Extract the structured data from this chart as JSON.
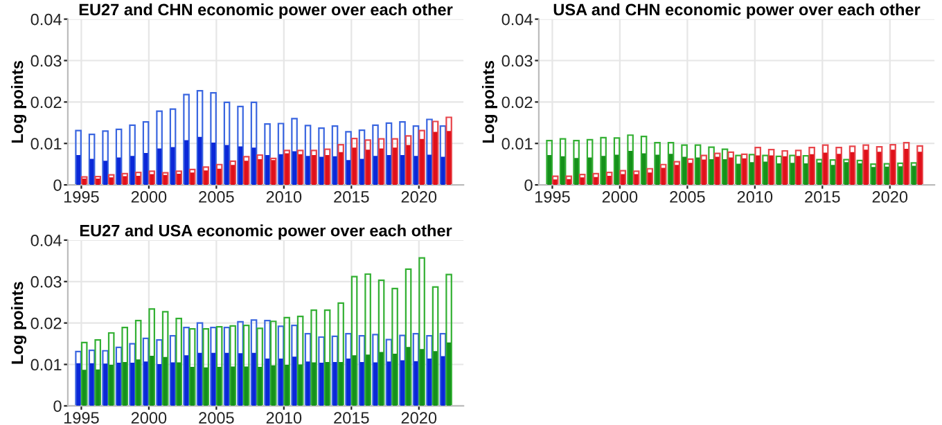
{
  "chart_data": [
    {
      "type": "bar",
      "title": "EU27 and CHN economic power over each other",
      "ylabel": "Log points",
      "x": [
        1995,
        1996,
        1997,
        1998,
        1999,
        2000,
        2001,
        2002,
        2003,
        2004,
        2005,
        2006,
        2007,
        2008,
        2009,
        2010,
        2011,
        2012,
        2013,
        2014,
        2015,
        2016,
        2017,
        2018,
        2019,
        2020,
        2021,
        2022
      ],
      "xlim": [
        1994,
        2023.3
      ],
      "xticks": [
        1995,
        2000,
        2005,
        2010,
        2015,
        2020
      ],
      "ylim": [
        0,
        0.04
      ],
      "yticks": [
        0,
        0.01,
        0.02,
        0.03,
        0.04
      ],
      "grid": true,
      "series": [
        {
          "color": "#3a66e0",
          "values": [
            0.0131,
            0.0122,
            0.013,
            0.0134,
            0.0144,
            0.0152,
            0.0178,
            0.0183,
            0.0218,
            0.0227,
            0.0222,
            0.0199,
            0.0189,
            0.0199,
            0.0147,
            0.0148,
            0.016,
            0.0143,
            0.0137,
            0.0142,
            0.0128,
            0.0132,
            0.0144,
            0.0149,
            0.0152,
            0.0142,
            0.0158,
            0.0142
          ]
        },
        {
          "color": "#0a28d8",
          "values": [
            0.0072,
            0.0063,
            0.0058,
            0.0066,
            0.007,
            0.0077,
            0.0088,
            0.0091,
            0.0108,
            0.0116,
            0.0102,
            0.0096,
            0.0093,
            0.009,
            0.0072,
            0.0074,
            0.0081,
            0.007,
            0.0068,
            0.0069,
            0.006,
            0.0063,
            0.007,
            0.0072,
            0.0072,
            0.007,
            0.0073,
            0.0068
          ]
        },
        {
          "color": "#e8454b",
          "values": [
            0.0019,
            0.002,
            0.0024,
            0.0027,
            0.003,
            0.0033,
            0.0029,
            0.0033,
            0.0037,
            0.0043,
            0.0049,
            0.0057,
            0.0068,
            0.0072,
            0.0064,
            0.0083,
            0.0083,
            0.0083,
            0.0086,
            0.0097,
            0.0112,
            0.0108,
            0.0111,
            0.0111,
            0.0118,
            0.0131,
            0.0153,
            0.0163
          ]
        },
        {
          "color": "#e0101a",
          "values": [
            0.0015,
            0.0015,
            0.0018,
            0.0021,
            0.0022,
            0.0026,
            0.0024,
            0.0027,
            0.003,
            0.0035,
            0.0039,
            0.0048,
            0.0058,
            0.0062,
            0.006,
            0.0076,
            0.0074,
            0.0072,
            0.0072,
            0.0079,
            0.009,
            0.0085,
            0.0088,
            0.009,
            0.0096,
            0.0111,
            0.0128,
            0.013
          ]
        }
      ]
    },
    {
      "type": "bar",
      "title": "USA and CHN economic power over each other",
      "ylabel": "Log points",
      "x": [
        1995,
        1996,
        1997,
        1998,
        1999,
        2000,
        2001,
        2002,
        2003,
        2004,
        2005,
        2006,
        2007,
        2008,
        2009,
        2010,
        2011,
        2012,
        2013,
        2014,
        2015,
        2016,
        2017,
        2018,
        2019,
        2020,
        2021,
        2022
      ],
      "xlim": [
        1994,
        2023.3
      ],
      "xticks": [
        1995,
        2000,
        2005,
        2010,
        2015,
        2020
      ],
      "ylim": [
        0,
        0.04
      ],
      "yticks": [
        0,
        0.01,
        0.02,
        0.03,
        0.04
      ],
      "grid": true,
      "series": [
        {
          "color": "#33b033",
          "values": [
            0.0107,
            0.0111,
            0.0107,
            0.0109,
            0.0114,
            0.0113,
            0.012,
            0.0117,
            0.0102,
            0.0102,
            0.0096,
            0.0096,
            0.0091,
            0.0086,
            0.0071,
            0.0073,
            0.0071,
            0.0069,
            0.0071,
            0.007,
            0.0061,
            0.006,
            0.0061,
            0.0059,
            0.005,
            0.0051,
            0.0052,
            0.0053
          ]
        },
        {
          "color": "#15911a",
          "values": [
            0.0072,
            0.0069,
            0.0065,
            0.0066,
            0.007,
            0.0073,
            0.0082,
            0.0076,
            0.0073,
            0.0075,
            0.0068,
            0.0066,
            0.0062,
            0.0062,
            0.0051,
            0.0055,
            0.0056,
            0.0052,
            0.0053,
            0.0052,
            0.0054,
            0.0048,
            0.0055,
            0.0052,
            0.0043,
            0.0044,
            0.0045,
            0.0046
          ]
        },
        {
          "color": "#e8454b",
          "values": [
            0.0021,
            0.0021,
            0.0025,
            0.0027,
            0.003,
            0.0034,
            0.0033,
            0.0039,
            0.0049,
            0.0056,
            0.0062,
            0.0071,
            0.0076,
            0.0079,
            0.0074,
            0.009,
            0.0085,
            0.0082,
            0.0083,
            0.009,
            0.0096,
            0.009,
            0.0093,
            0.0096,
            0.0092,
            0.0097,
            0.0102,
            0.0094
          ]
        },
        {
          "color": "#e0101a",
          "values": [
            0.0013,
            0.0014,
            0.0018,
            0.0019,
            0.0022,
            0.0026,
            0.0026,
            0.003,
            0.0041,
            0.0048,
            0.0053,
            0.0061,
            0.0068,
            0.0066,
            0.0064,
            0.0071,
            0.0071,
            0.0069,
            0.007,
            0.0074,
            0.0078,
            0.0075,
            0.0079,
            0.0085,
            0.008,
            0.0085,
            0.0087,
            0.008
          ]
        }
      ]
    },
    {
      "type": "bar",
      "title": "EU27 and USA economic power over each other",
      "ylabel": "Log points",
      "x": [
        1995,
        1996,
        1997,
        1998,
        1999,
        2000,
        2001,
        2002,
        2003,
        2004,
        2005,
        2006,
        2007,
        2008,
        2009,
        2010,
        2011,
        2012,
        2013,
        2014,
        2015,
        2016,
        2017,
        2018,
        2019,
        2020,
        2021,
        2022
      ],
      "xlim": [
        1994,
        2023.3
      ],
      "xticks": [
        1995,
        2000,
        2005,
        2010,
        2015,
        2020
      ],
      "ylim": [
        0,
        0.04
      ],
      "yticks": [
        0,
        0.01,
        0.02,
        0.03,
        0.04
      ],
      "grid": true,
      "series": [
        {
          "color": "#3a66e0",
          "values": [
            0.0131,
            0.0134,
            0.0133,
            0.0141,
            0.015,
            0.0163,
            0.0159,
            0.0169,
            0.0189,
            0.02,
            0.0189,
            0.0189,
            0.0203,
            0.0207,
            0.0206,
            0.0192,
            0.0194,
            0.0174,
            0.0166,
            0.0168,
            0.0174,
            0.0169,
            0.0172,
            0.016,
            0.017,
            0.0174,
            0.0169,
            0.0174
          ]
        },
        {
          "color": "#0a28d8",
          "values": [
            0.0103,
            0.0103,
            0.0102,
            0.0104,
            0.0104,
            0.0107,
            0.0101,
            0.0105,
            0.0122,
            0.0128,
            0.0128,
            0.0128,
            0.0127,
            0.0128,
            0.0114,
            0.0114,
            0.0119,
            0.0107,
            0.0104,
            0.0106,
            0.0114,
            0.0106,
            0.0105,
            0.0107,
            0.011,
            0.0108,
            0.0114,
            0.012
          ]
        },
        {
          "color": "#33b033",
          "values": [
            0.0153,
            0.0159,
            0.0176,
            0.0189,
            0.0206,
            0.0234,
            0.0227,
            0.0211,
            0.0186,
            0.0186,
            0.0191,
            0.0193,
            0.0194,
            0.0187,
            0.0204,
            0.0213,
            0.0216,
            0.0231,
            0.0231,
            0.0248,
            0.0312,
            0.0318,
            0.0303,
            0.0283,
            0.033,
            0.0357,
            0.0287,
            0.0317
          ]
        },
        {
          "color": "#15911a",
          "values": [
            0.0087,
            0.0088,
            0.0099,
            0.0106,
            0.0112,
            0.0121,
            0.0118,
            0.0105,
            0.0094,
            0.0093,
            0.0094,
            0.0095,
            0.0095,
            0.0094,
            0.0098,
            0.0099,
            0.01,
            0.0105,
            0.0106,
            0.0106,
            0.0122,
            0.0124,
            0.013,
            0.0126,
            0.0142,
            0.0137,
            0.0132,
            0.0153
          ]
        }
      ]
    }
  ]
}
